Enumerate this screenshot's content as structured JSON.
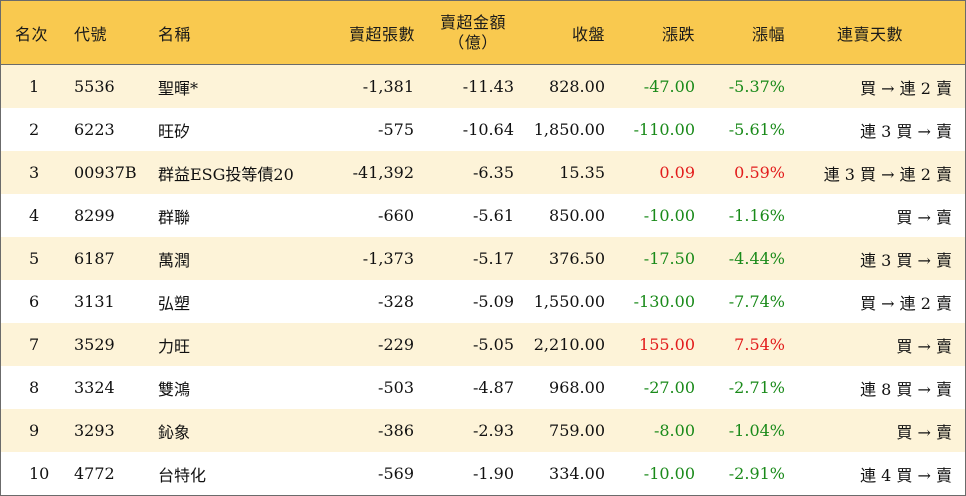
{
  "headers": {
    "rank": "名次",
    "code": "代號",
    "name": "名稱",
    "shares": "賣超張數",
    "amount_line1": "賣超金額",
    "amount_line2": "（億）",
    "close": "收盤",
    "change": "漲跌",
    "pct": "漲幅",
    "days": "連賣天數"
  },
  "colors": {
    "header_bg": "#f9c94f",
    "stripe_bg": "#fdf3d8",
    "up": "#e21b1b",
    "down": "#1a8a1a"
  },
  "rows": [
    {
      "rank": "1",
      "code": "5536",
      "name": "聖暉*",
      "shares": "-1,381",
      "amount": "-11.43",
      "close": "828.00",
      "change": "-47.00",
      "pct": "-5.37%",
      "days": "買 → 連 2 賣",
      "dir": "down"
    },
    {
      "rank": "2",
      "code": "6223",
      "name": "旺矽",
      "shares": "-575",
      "amount": "-10.64",
      "close": "1,850.00",
      "change": "-110.00",
      "pct": "-5.61%",
      "days": "連 3 買 → 賣",
      "dir": "down"
    },
    {
      "rank": "3",
      "code": "00937B",
      "name": "群益ESG投等債20",
      "shares": "-41,392",
      "amount": "-6.35",
      "close": "15.35",
      "change": "0.09",
      "pct": "0.59%",
      "days": "連 3 買 → 連 2 賣",
      "dir": "up"
    },
    {
      "rank": "4",
      "code": "8299",
      "name": "群聯",
      "shares": "-660",
      "amount": "-5.61",
      "close": "850.00",
      "change": "-10.00",
      "pct": "-1.16%",
      "days": "買 → 賣",
      "dir": "down"
    },
    {
      "rank": "5",
      "code": "6187",
      "name": "萬潤",
      "shares": "-1,373",
      "amount": "-5.17",
      "close": "376.50",
      "change": "-17.50",
      "pct": "-4.44%",
      "days": "連 3 買 → 賣",
      "dir": "down"
    },
    {
      "rank": "6",
      "code": "3131",
      "name": "弘塑",
      "shares": "-328",
      "amount": "-5.09",
      "close": "1,550.00",
      "change": "-130.00",
      "pct": "-7.74%",
      "days": "買 → 連 2 賣",
      "dir": "down"
    },
    {
      "rank": "7",
      "code": "3529",
      "name": "力旺",
      "shares": "-229",
      "amount": "-5.05",
      "close": "2,210.00",
      "change": "155.00",
      "pct": "7.54%",
      "days": "買 → 賣",
      "dir": "up"
    },
    {
      "rank": "8",
      "code": "3324",
      "name": "雙鴻",
      "shares": "-503",
      "amount": "-4.87",
      "close": "968.00",
      "change": "-27.00",
      "pct": "-2.71%",
      "days": "連 8 買 → 賣",
      "dir": "down"
    },
    {
      "rank": "9",
      "code": "3293",
      "name": "鈊象",
      "shares": "-386",
      "amount": "-2.93",
      "close": "759.00",
      "change": "-8.00",
      "pct": "-1.04%",
      "days": "買 → 賣",
      "dir": "down"
    },
    {
      "rank": "10",
      "code": "4772",
      "name": "台特化",
      "shares": "-569",
      "amount": "-1.90",
      "close": "334.00",
      "change": "-10.00",
      "pct": "-2.91%",
      "days": "連 4 買 → 賣",
      "dir": "down"
    }
  ]
}
